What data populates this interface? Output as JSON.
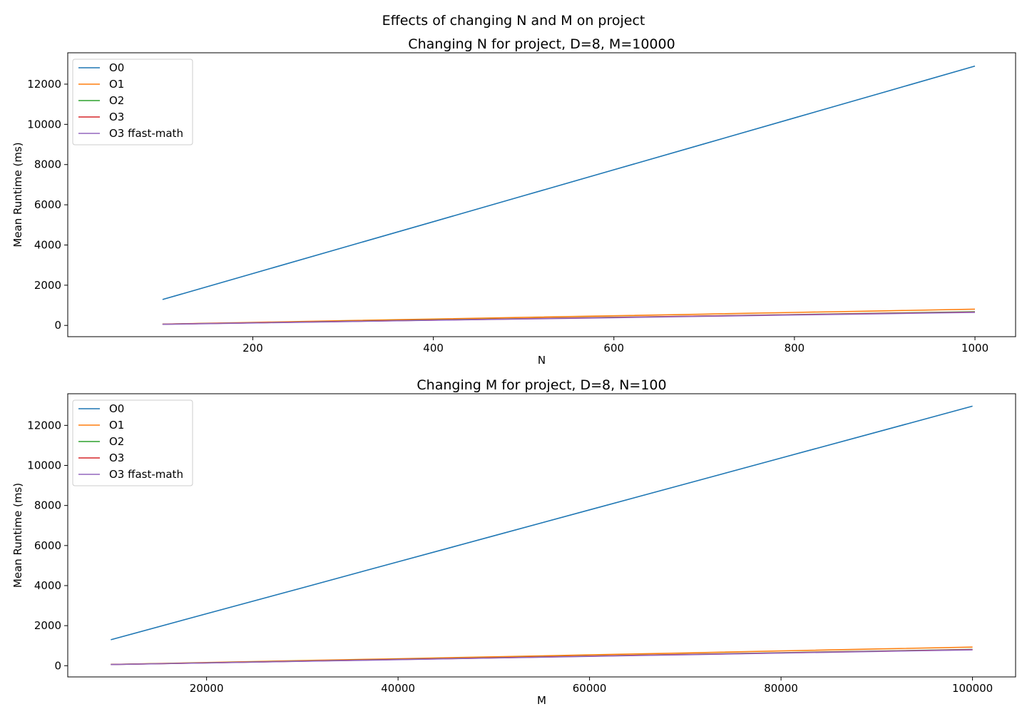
{
  "figure": {
    "suptitle": "Effects of changing N and M on project"
  },
  "colors": {
    "O0": "#1f77b4",
    "O1": "#ff7f0e",
    "O2": "#2ca02c",
    "O3": "#d62728",
    "O3 ffast-math": "#9467bd"
  },
  "chart_data": [
    {
      "type": "line",
      "title": "Changing N for project, D=8, M=10000",
      "xlabel": "N",
      "ylabel": "Mean Runtime (ms)",
      "x": [
        100,
        200,
        300,
        400,
        500,
        600,
        700,
        800,
        900,
        1000
      ],
      "xlim": [
        -5,
        1045
      ],
      "ylim": [
        -560,
        13560
      ],
      "xticks": [
        200,
        400,
        600,
        800,
        1000
      ],
      "yticks": [
        0,
        2000,
        4000,
        6000,
        8000,
        10000,
        12000
      ],
      "grid": false,
      "legend": "top-left",
      "series": [
        {
          "name": "O0",
          "values": [
            1290,
            2580,
            3870,
            5160,
            6450,
            7740,
            9030,
            10320,
            11610,
            12900
          ]
        },
        {
          "name": "O1",
          "values": [
            65,
            150,
            235,
            315,
            400,
            480,
            560,
            645,
            725,
            810
          ]
        },
        {
          "name": "O2",
          "values": [
            60,
            130,
            200,
            270,
            335,
            405,
            470,
            540,
            610,
            680
          ]
        },
        {
          "name": "O3",
          "values": [
            60,
            128,
            196,
            262,
            330,
            398,
            465,
            532,
            600,
            665
          ]
        },
        {
          "name": "O3 ffast-math",
          "values": [
            55,
            122,
            188,
            255,
            320,
            385,
            452,
            518,
            584,
            650
          ]
        }
      ]
    },
    {
      "type": "line",
      "title": "Changing M for project, D=8, N=100",
      "xlabel": "M",
      "ylabel": "Mean Runtime (ms)",
      "x": [
        10000,
        20000,
        30000,
        40000,
        50000,
        60000,
        70000,
        80000,
        90000,
        100000
      ],
      "xlim": [
        5500,
        104500
      ],
      "ylim": [
        -560,
        13580
      ],
      "xticks": [
        20000,
        40000,
        60000,
        80000,
        100000
      ],
      "yticks": [
        0,
        2000,
        4000,
        6000,
        8000,
        10000,
        12000
      ],
      "grid": false,
      "legend": "top-left",
      "series": [
        {
          "name": "O0",
          "values": [
            1295,
            2595,
            3890,
            5190,
            6485,
            7780,
            9075,
            10370,
            11665,
            12960
          ]
        },
        {
          "name": "O1",
          "values": [
            65,
            160,
            255,
            350,
            445,
            540,
            635,
            740,
            835,
            930
          ]
        },
        {
          "name": "O2",
          "values": [
            60,
            145,
            230,
            315,
            395,
            480,
            565,
            650,
            730,
            815
          ]
        },
        {
          "name": "O3",
          "values": [
            60,
            143,
            226,
            310,
            392,
            475,
            558,
            640,
            722,
            805
          ]
        },
        {
          "name": "O3 ffast-math",
          "values": [
            55,
            138,
            220,
            302,
            383,
            465,
            547,
            628,
            710,
            790
          ]
        }
      ]
    }
  ]
}
